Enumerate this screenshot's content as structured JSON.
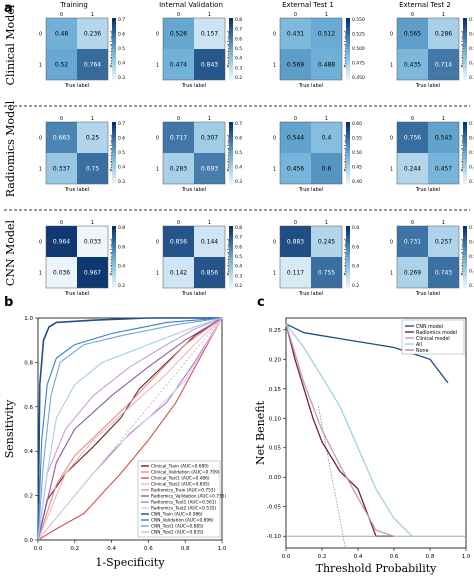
{
  "panel_a": {
    "label": "a",
    "columns": [
      "Training",
      "Internal Validation",
      "External Test 1",
      "External Test 2"
    ],
    "rows": [
      "Clinical Model",
      "Radiomics Model",
      "CNN Model"
    ],
    "tick_labels": [
      "0",
      "1"
    ],
    "xlabel": "True label",
    "ylabel": "Predicted label",
    "matrices": [
      [
        [
          [
            0.48,
            0.236
          ],
          [
            0.52,
            0.764
          ]
        ],
        [
          [
            0.526,
            0.157
          ],
          [
            0.474,
            0.843
          ]
        ],
        [
          [
            0.431,
            0.512
          ],
          [
            0.569,
            0.488
          ]
        ],
        [
          [
            0.565,
            0.286
          ],
          [
            0.435,
            0.714
          ]
        ]
      ],
      [
        [
          [
            0.663,
            0.25
          ],
          [
            0.337,
            0.75
          ]
        ],
        [
          [
            0.717,
            0.307
          ],
          [
            0.283,
            0.693
          ]
        ],
        [
          [
            0.544,
            0.4
          ],
          [
            0.456,
            0.6
          ]
        ],
        [
          [
            0.756,
            0.543
          ],
          [
            0.244,
            0.457
          ]
        ]
      ],
      [
        [
          [
            0.964,
            0.033
          ],
          [
            0.036,
            0.967
          ]
        ],
        [
          [
            0.856,
            0.144
          ],
          [
            0.142,
            0.856
          ]
        ],
        [
          [
            0.883,
            0.245
          ],
          [
            0.117,
            0.755
          ]
        ],
        [
          [
            0.731,
            0.257
          ],
          [
            0.269,
            0.743
          ]
        ]
      ]
    ],
    "colorbars": [
      [
        [
          "0.7",
          "0.6",
          "0.5",
          "0.4",
          "0.3"
        ],
        [
          "0.8",
          "0.7",
          "0.6",
          "0.5",
          "0.4",
          "0.3",
          "0.2"
        ],
        [
          "0.550",
          "0.525",
          "0.500",
          "0.475",
          "0.450"
        ],
        [
          "0.7",
          "0.6",
          "0.5",
          "0.4",
          "0.3"
        ]
      ],
      [
        [
          "0.7",
          "0.6",
          "0.5",
          "0.4",
          "0.3"
        ],
        [
          "0.7",
          "0.6",
          "0.5",
          "0.4",
          "0.3"
        ],
        [
          "0.60",
          "0.55",
          "0.50",
          "0.45",
          "0.40"
        ],
        [
          "0.7",
          "0.6",
          "0.5",
          "0.4",
          "0.3"
        ]
      ],
      [
        [
          "0.8",
          "0.6",
          "0.4",
          "0.2"
        ],
        [
          "0.8",
          "0.7",
          "0.6",
          "0.5",
          "0.4",
          "0.3",
          "0.2"
        ],
        [
          "0.8",
          "0.6",
          "0.4",
          "0.2"
        ],
        [
          "0.7",
          "0.6",
          "0.5",
          "0.4",
          "0.3"
        ]
      ]
    ],
    "colormap": {
      "low": "#f7fbff",
      "mid": "#6baed6",
      "high": "#08306b"
    }
  },
  "panel_b": {
    "label": "b",
    "xlabel": "1-Specificity",
    "ylabel": "Sensitivity",
    "x_ticks": [
      "0.0",
      "0.2",
      "0.4",
      "0.6",
      "0.8",
      "1.0"
    ],
    "y_ticks": [
      "0.0",
      "0.2",
      "0.4",
      "0.6",
      "0.8",
      "1.0"
    ],
    "legend": [
      {
        "label": "Clinical_Train (AUC=0.689)",
        "color": "#7a1f2b"
      },
      {
        "label": "Clinical_Validation (AUC=0.709)",
        "color": "#e88a8a"
      },
      {
        "label": "Clinical_Test1 (AUC=0.486)",
        "color": "#d94f4f"
      },
      {
        "label": "Clinical_Test2 (AUC=0.695)",
        "color": "#f2b8b8"
      },
      {
        "label": "Radiomics_Train (AUC=0.753)",
        "color": "#c9a0d6"
      },
      {
        "label": "Radiomics_Validation (AUC=0.735)",
        "color": "#8c5aa8"
      },
      {
        "label": "Radiomics_Test1 (AUC=0.561)",
        "color": "#b07cc6"
      },
      {
        "label": "Radiomics_Test2 (AUC=0.535)",
        "color": "#e3c9ee"
      },
      {
        "label": "CNN_Train (AUC=0.986)",
        "color": "#1f4e8c"
      },
      {
        "label": "CNN_Validation (AUC=0.896)",
        "color": "#3a7fc1"
      },
      {
        "label": "CNN_Test1 (AUC=0.885)",
        "color": "#6fa8dc"
      },
      {
        "label": "CNN_Test2 (AUC=0.835)",
        "color": "#a9cbe8"
      }
    ]
  },
  "panel_c": {
    "label": "c",
    "xlabel": "Threshold Probability",
    "ylabel": "Net Benefit",
    "x_ticks": [
      "0.0",
      "0.2",
      "0.4",
      "0.6",
      "0.8",
      "1.0"
    ],
    "y_ticks": [
      "0.25",
      "0.20",
      "0.15",
      "0.10",
      "0.05",
      "0.00",
      "-0.05",
      "-0.10"
    ],
    "legend": [
      {
        "label": "CNN model",
        "color": "#1f4e8c"
      },
      {
        "label": "Radiomics model",
        "color": "#7a1f2b"
      },
      {
        "label": "Clinical model",
        "color": "#c0a0b8"
      },
      {
        "label": "All",
        "color": "#9fd0e6"
      },
      {
        "label": "None",
        "color": "#999999"
      }
    ]
  },
  "chart_data": [
    {
      "type": "heatmap",
      "title": "Confusion matrices",
      "columns": [
        "Training",
        "Internal Validation",
        "External Test 1",
        "External Test 2"
      ],
      "rows": [
        "Clinical Model",
        "Radiomics Model",
        "CNN Model"
      ],
      "xlabel": "True label",
      "ylabel": "Predicted label",
      "categories": [
        "0",
        "1"
      ],
      "values": [
        [
          [
            [
              0.48,
              0.236
            ],
            [
              0.52,
              0.764
            ]
          ],
          [
            [
              0.526,
              0.157
            ],
            [
              0.474,
              0.843
            ]
          ],
          [
            [
              0.431,
              0.512
            ],
            [
              0.569,
              0.488
            ]
          ],
          [
            [
              0.565,
              0.286
            ],
            [
              0.435,
              0.714
            ]
          ]
        ],
        [
          [
            [
              0.663,
              0.25
            ],
            [
              0.337,
              0.75
            ]
          ],
          [
            [
              0.717,
              0.307
            ],
            [
              0.283,
              0.693
            ]
          ],
          [
            [
              0.544,
              0.4
            ],
            [
              0.456,
              0.6
            ]
          ],
          [
            [
              0.756,
              0.543
            ],
            [
              0.244,
              0.457
            ]
          ]
        ],
        [
          [
            [
              0.964,
              0.033
            ],
            [
              0.036,
              0.967
            ]
          ],
          [
            [
              0.856,
              0.144
            ],
            [
              0.142,
              0.856
            ]
          ],
          [
            [
              0.883,
              0.245
            ],
            [
              0.117,
              0.755
            ]
          ],
          [
            [
              0.731,
              0.257
            ],
            [
              0.269,
              0.743
            ]
          ]
        ]
      ]
    },
    {
      "type": "line",
      "xlabel": "1-Specificity",
      "ylabel": "Sensitivity",
      "xlim": [
        0,
        1
      ],
      "ylim": [
        0,
        1
      ],
      "legend_position": "bottom-right",
      "series": [
        {
          "name": "Clinical_Train (AUC=0.689)",
          "color": "#7a1f2b",
          "x": [
            0,
            0.05,
            0.15,
            0.3,
            0.45,
            0.55,
            0.7,
            0.85,
            1
          ],
          "y": [
            0,
            0.18,
            0.3,
            0.42,
            0.55,
            0.68,
            0.8,
            0.92,
            1
          ]
        },
        {
          "name": "Clinical_Validation (AUC=0.709)",
          "color": "#e88a8a",
          "x": [
            0,
            0.1,
            0.2,
            0.35,
            0.5,
            0.65,
            0.8,
            1
          ],
          "y": [
            0,
            0.25,
            0.38,
            0.5,
            0.62,
            0.75,
            0.88,
            1
          ]
        },
        {
          "name": "Clinical_Test1 (AUC=0.486)",
          "color": "#d94f4f",
          "x": [
            0,
            0.1,
            0.25,
            0.45,
            0.6,
            0.75,
            0.9,
            1
          ],
          "y": [
            0,
            0.05,
            0.12,
            0.3,
            0.45,
            0.62,
            0.85,
            1
          ]
        },
        {
          "name": "Clinical_Test2 (AUC=0.695)",
          "color": "#f2b8b8",
          "x": [
            0,
            0.15,
            0.3,
            0.5,
            0.7,
            0.85,
            1
          ],
          "y": [
            0,
            0.3,
            0.45,
            0.6,
            0.75,
            0.88,
            1
          ]
        },
        {
          "name": "Radiomics_Train (AUC=0.753)",
          "color": "#c9a0d6",
          "x": [
            0,
            0.05,
            0.15,
            0.3,
            0.5,
            0.7,
            0.85,
            1
          ],
          "y": [
            0,
            0.3,
            0.5,
            0.65,
            0.78,
            0.88,
            0.95,
            1
          ]
        },
        {
          "name": "Radiomics_Validation (AUC=0.735)",
          "color": "#8c5aa8",
          "x": [
            0,
            0.1,
            0.2,
            0.4,
            0.6,
            0.8,
            1
          ],
          "y": [
            0,
            0.35,
            0.5,
            0.65,
            0.78,
            0.9,
            1
          ]
        },
        {
          "name": "Radiomics_Test1 (AUC=0.561)",
          "color": "#b07cc6",
          "x": [
            0,
            0.15,
            0.3,
            0.5,
            0.7,
            0.85,
            1
          ],
          "y": [
            0,
            0.15,
            0.3,
            0.48,
            0.62,
            0.8,
            1
          ]
        },
        {
          "name": "Radiomics_Test2 (AUC=0.535)",
          "color": "#e3c9ee",
          "x": [
            0,
            0.2,
            0.4,
            0.6,
            0.8,
            1
          ],
          "y": [
            0,
            0.2,
            0.4,
            0.55,
            0.72,
            1
          ]
        },
        {
          "name": "CNN_Train (AUC=0.986)",
          "color": "#1f4e8c",
          "x": [
            0,
            0.01,
            0.03,
            0.06,
            0.1,
            0.3,
            0.6,
            1
          ],
          "y": [
            0,
            0.7,
            0.9,
            0.96,
            0.98,
            0.99,
            1,
            1
          ]
        },
        {
          "name": "CNN_Validation (AUC=0.896)",
          "color": "#3a7fc1",
          "x": [
            0,
            0.02,
            0.05,
            0.1,
            0.2,
            0.4,
            0.7,
            1
          ],
          "y": [
            0,
            0.45,
            0.7,
            0.82,
            0.88,
            0.93,
            0.98,
            1
          ]
        },
        {
          "name": "CNN_Test1 (AUC=0.885)",
          "color": "#6fa8dc",
          "x": [
            0,
            0.03,
            0.07,
            0.12,
            0.25,
            0.45,
            0.75,
            1
          ],
          "y": [
            0,
            0.35,
            0.65,
            0.8,
            0.88,
            0.92,
            0.97,
            1
          ]
        },
        {
          "name": "CNN_Test2 (AUC=0.835)",
          "color": "#a9cbe8",
          "x": [
            0,
            0.05,
            0.1,
            0.2,
            0.35,
            0.6,
            0.85,
            1
          ],
          "y": [
            0,
            0.3,
            0.55,
            0.7,
            0.8,
            0.88,
            0.96,
            1
          ]
        }
      ]
    },
    {
      "type": "line",
      "xlabel": "Threshold Probability",
      "ylabel": "Net Benefit",
      "xlim": [
        0,
        1
      ],
      "ylim": [
        -0.12,
        0.27
      ],
      "legend_position": "top-right",
      "series": [
        {
          "name": "CNN model",
          "color": "#1f4e8c",
          "x": [
            0,
            0.1,
            0.2,
            0.3,
            0.4,
            0.5,
            0.6,
            0.7,
            0.8,
            0.9
          ],
          "y": [
            0.26,
            0.245,
            0.24,
            0.235,
            0.23,
            0.225,
            0.22,
            0.21,
            0.2,
            0.16
          ]
        },
        {
          "name": "Radiomics model",
          "color": "#7a1f2b",
          "x": [
            0,
            0.05,
            0.1,
            0.15,
            0.2,
            0.3,
            0.4,
            0.5,
            0.6
          ],
          "y": [
            0.26,
            0.2,
            0.15,
            0.1,
            0.06,
            0.01,
            -0.02,
            -0.1,
            -0.1
          ]
        },
        {
          "name": "Clinical model",
          "color": "#c0a0b8",
          "x": [
            0,
            0.1,
            0.2,
            0.3,
            0.5,
            0.6
          ],
          "y": [
            0.26,
            0.16,
            0.08,
            0.02,
            -0.09,
            -0.1
          ]
        },
        {
          "name": "All",
          "color": "#9fd0e6",
          "x": [
            0,
            0.1,
            0.2,
            0.3,
            0.4,
            0.5,
            0.6,
            0.7
          ],
          "y": [
            0.26,
            0.22,
            0.17,
            0.12,
            0.05,
            -0.02,
            -0.07,
            -0.1
          ]
        },
        {
          "name": "None",
          "color": "#999999",
          "x": [
            0,
            1
          ],
          "y": [
            -0.1,
            -0.1
          ]
        }
      ]
    }
  ]
}
